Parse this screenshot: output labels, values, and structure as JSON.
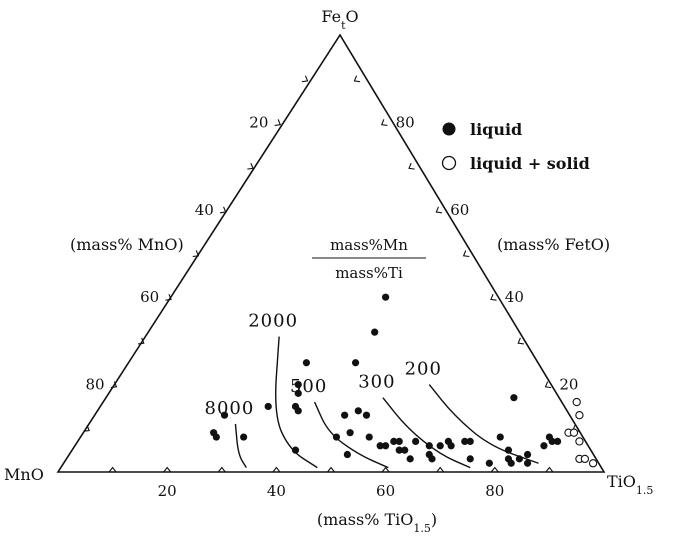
{
  "chart_data": {
    "type": "scatter",
    "diagram": "ternary",
    "vertices": {
      "top": "FetO",
      "left": "MnO",
      "right": "TiO1.5"
    },
    "axis_titles": {
      "left_edge": "(mass% MnO)",
      "right_edge": "(mass% FetO)",
      "bottom_edge": "(mass% TiO1.5)"
    },
    "ticks": {
      "left_edge_labels": [
        "80",
        "60",
        "40",
        "20"
      ],
      "right_edge_labels": [
        "80",
        "60",
        "40",
        "20"
      ],
      "bottom_edge_labels": [
        "20",
        "40",
        "60",
        "80"
      ]
    },
    "ratio_label": {
      "numerator": "mass%Mn",
      "denominator": "mass%Ti"
    },
    "legend": {
      "placement": "top-right",
      "entries": [
        "liquid",
        "liquid + solid"
      ]
    },
    "contours": [
      {
        "label": "8000",
        "points": [
          [
            27,
            11
          ],
          [
            31,
            4
          ],
          [
            34,
            1
          ]
        ]
      },
      {
        "label": "2000",
        "points": [
          [
            25,
            31
          ],
          [
            33,
            13
          ],
          [
            40,
            5
          ],
          [
            47,
            1
          ]
        ]
      },
      {
        "label": "500",
        "points": [
          [
            39,
            16
          ],
          [
            45,
            9
          ],
          [
            53,
            4
          ],
          [
            60,
            1
          ]
        ]
      },
      {
        "label": "300",
        "points": [
          [
            51,
            17
          ],
          [
            59,
            10
          ],
          [
            68,
            4
          ],
          [
            75,
            1
          ]
        ]
      },
      {
        "label": "200",
        "points": [
          [
            58,
            20
          ],
          [
            66,
            13
          ],
          [
            76,
            6
          ],
          [
            87,
            2
          ]
        ]
      }
    ],
    "series": [
      {
        "name": "liquid",
        "marker": "filled-circle",
        "points": [
          [
            24,
            13
          ],
          [
            24,
            9
          ],
          [
            25,
            8
          ],
          [
            30,
            8
          ],
          [
            31,
            15
          ],
          [
            33,
            25
          ],
          [
            34,
            20
          ],
          [
            35,
            18
          ],
          [
            36,
            15
          ],
          [
            37,
            14
          ],
          [
            40,
            40
          ],
          [
            42,
            32
          ],
          [
            42,
            25
          ],
          [
            41,
            5
          ],
          [
            46,
            13
          ],
          [
            47,
            8
          ],
          [
            48,
            14
          ],
          [
            49,
            9
          ],
          [
            50,
            13
          ],
          [
            51,
            4
          ],
          [
            53,
            8
          ],
          [
            56,
            6
          ],
          [
            57,
            6
          ],
          [
            58,
            7
          ],
          [
            59,
            7
          ],
          [
            60,
            5
          ],
          [
            61,
            5
          ],
          [
            62,
            7
          ],
          [
            63,
            3
          ],
          [
            65,
            6
          ],
          [
            66,
            4
          ],
          [
            67,
            6
          ],
          [
            67,
            3
          ],
          [
            68,
            7
          ],
          [
            69,
            6
          ],
          [
            71,
            7
          ],
          [
            72,
            7
          ],
          [
            74,
            3
          ],
          [
            75,
            17
          ],
          [
            77,
            8
          ],
          [
            78,
            2
          ],
          [
            80,
            5
          ],
          [
            81,
            3
          ],
          [
            82,
            2
          ],
          [
            83,
            3
          ],
          [
            84,
            4
          ],
          [
            85,
            2
          ],
          [
            86,
            6
          ],
          [
            86,
            8
          ],
          [
            87,
            7
          ],
          [
            88,
            7
          ]
        ]
      },
      {
        "name": "liquid + solid",
        "marker": "open-circle",
        "points": [
          [
            87,
            16
          ],
          [
            89,
            13
          ],
          [
            89,
            9
          ],
          [
            90,
            9
          ],
          [
            92,
            7
          ],
          [
            94,
            3
          ],
          [
            95,
            3
          ],
          [
            97,
            2
          ]
        ]
      }
    ]
  }
}
